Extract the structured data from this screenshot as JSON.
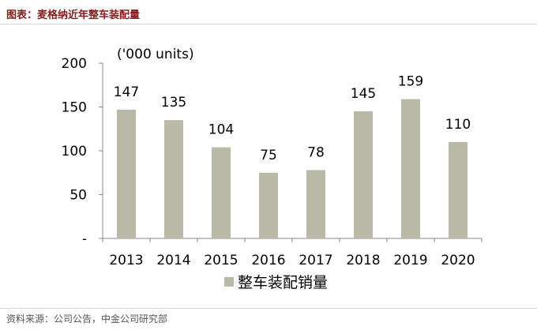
{
  "figure_title": "图表：麦格纳近年整车装配量",
  "source": "资料来源：公司公告，中金公司研究部",
  "chart_data": {
    "type": "bar",
    "unit_label": "('000 units)",
    "categories": [
      "2013",
      "2014",
      "2015",
      "2016",
      "2017",
      "2018",
      "2019",
      "2020"
    ],
    "series": [
      {
        "name": "整车装配销量",
        "values": [
          147,
          135,
          104,
          75,
          78,
          145,
          159,
          110
        ]
      }
    ],
    "data_labels": [
      "147",
      "135",
      "104",
      "75",
      "78",
      "145",
      "159",
      "110"
    ],
    "yticks": [
      0,
      50,
      100,
      150,
      200
    ],
    "ytick_labels": [
      "-",
      "50",
      "100",
      "150",
      "200"
    ],
    "ylim": [
      0,
      200
    ],
    "bar_color": "#bab8a7",
    "grid": false,
    "legend": "bottom-center"
  }
}
